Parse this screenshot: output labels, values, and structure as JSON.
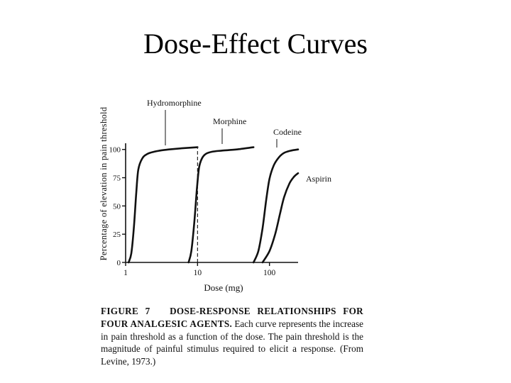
{
  "slide_title": "Dose-Effect Curves",
  "caption": {
    "label": "FIGURE 7",
    "heading": "DOSE-RESPONSE RELATIONSHIPS FOR FOUR ANALGESIC AGENTS.",
    "body": "Each curve represents the increase in pain threshold as a function of the dose. The pain threshold is the magnitude of painful stimulus required to elicit a response. (From Levine, 1973.)"
  },
  "chart_data": {
    "type": "line",
    "title": "",
    "xlabel": "Dose (mg)",
    "ylabel": "Percentage of elevation in pain threshold",
    "x_scale": "log",
    "xlim": [
      1,
      250
    ],
    "ylim": [
      0,
      108
    ],
    "x_ticks": [
      1,
      10,
      100
    ],
    "x_tick_labels": [
      "1",
      "10",
      "100"
    ],
    "y_ticks": [
      0,
      25,
      50,
      75,
      100
    ],
    "y_tick_labels": [
      "0",
      "25",
      "50",
      "75",
      "100"
    ],
    "grid": false,
    "reference_line": {
      "x": 10,
      "style": "dashed"
    },
    "series": [
      {
        "name": "Hydromorphine",
        "x": [
          1.1,
          1.2,
          1.3,
          1.4,
          1.5,
          1.7,
          2,
          2.5,
          3,
          4,
          6,
          10
        ],
        "y": [
          0,
          8,
          30,
          60,
          82,
          92,
          96,
          98,
          99,
          100,
          101,
          102
        ]
      },
      {
        "name": "Morphine",
        "x": [
          7.5,
          8.2,
          9,
          9.8,
          10.5,
          11.5,
          13,
          16,
          22,
          35,
          60
        ],
        "y": [
          0,
          10,
          35,
          65,
          84,
          92,
          96,
          98,
          99,
          100,
          102
        ]
      },
      {
        "name": "Codeine",
        "x": [
          60,
          70,
          80,
          90,
          100,
          115,
          135,
          160,
          200,
          250
        ],
        "y": [
          0,
          10,
          30,
          55,
          74,
          86,
          93,
          97,
          99,
          100
        ]
      },
      {
        "name": "Aspirin",
        "x": [
          80,
          100,
          120,
          140,
          160,
          190,
          220,
          250
        ],
        "y": [
          0,
          10,
          25,
          43,
          58,
          70,
          76,
          79
        ]
      }
    ]
  }
}
